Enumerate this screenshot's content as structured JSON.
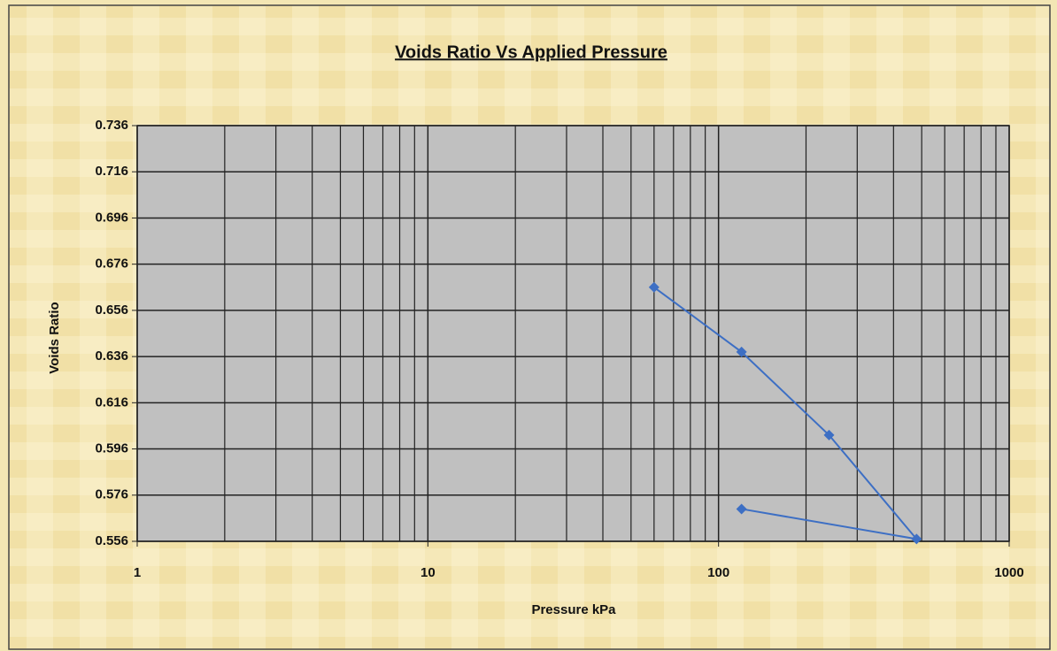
{
  "chart_data": {
    "type": "line",
    "title": "Voids Ratio Vs Applied Pressure",
    "x_label": "Pressure kPa",
    "y_label": "Voids Ratio",
    "x_log": true,
    "grid": true,
    "xlim": [
      1,
      1000
    ],
    "xticks": [
      1,
      10,
      100,
      1000
    ],
    "ylim": [
      0.556,
      0.736
    ],
    "yticks": [
      0.556,
      0.576,
      0.596,
      0.616,
      0.636,
      0.656,
      0.676,
      0.696,
      0.716,
      0.736
    ],
    "series": [
      {
        "name": "Voids Ratio",
        "color": "#3d6fc4",
        "x": [
          60,
          120,
          240,
          480,
          120
        ],
        "values": [
          0.666,
          0.638,
          0.602,
          0.557,
          0.57
        ]
      }
    ]
  }
}
